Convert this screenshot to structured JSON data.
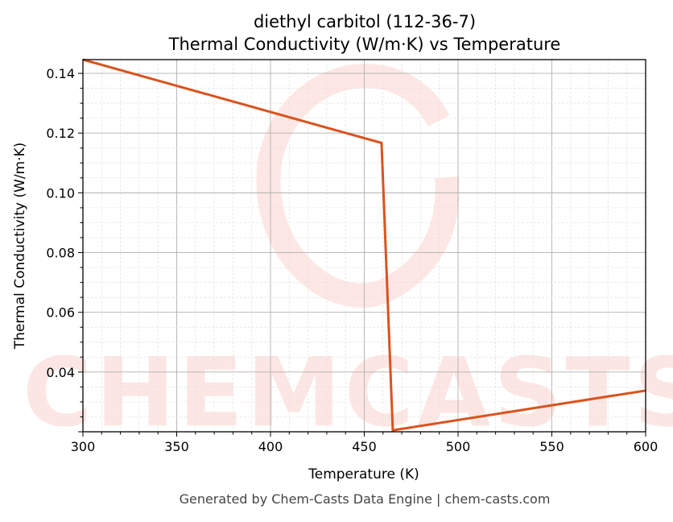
{
  "chart_data": {
    "type": "line",
    "title": "diethyl carbitol (112-36-7)",
    "subtitle": "Thermal Conductivity (W/m·K) vs Temperature",
    "xlabel": "Temperature (K)",
    "ylabel": "Thermal Conductivity (W/m·K)",
    "xlim": [
      300,
      600
    ],
    "ylim": [
      0.02,
      0.1446
    ],
    "xticks": [
      300,
      350,
      400,
      450,
      500,
      550,
      600
    ],
    "yticks": [
      0.04,
      0.06,
      0.08,
      0.1,
      0.12,
      0.14
    ],
    "ytick_labels": [
      "0.04",
      "0.06",
      "0.08",
      "0.10",
      "0.12",
      "0.14"
    ],
    "grid": true,
    "series": [
      {
        "color": "#d9531e",
        "x": [
          300,
          459.2,
          465.2,
          600
        ],
        "y": [
          0.1446,
          0.1167,
          0.0205,
          0.0338
        ]
      }
    ],
    "watermark": "CHEMCASTS",
    "footer": "Generated by Chem-Casts Data Engine | chem-casts.com"
  }
}
